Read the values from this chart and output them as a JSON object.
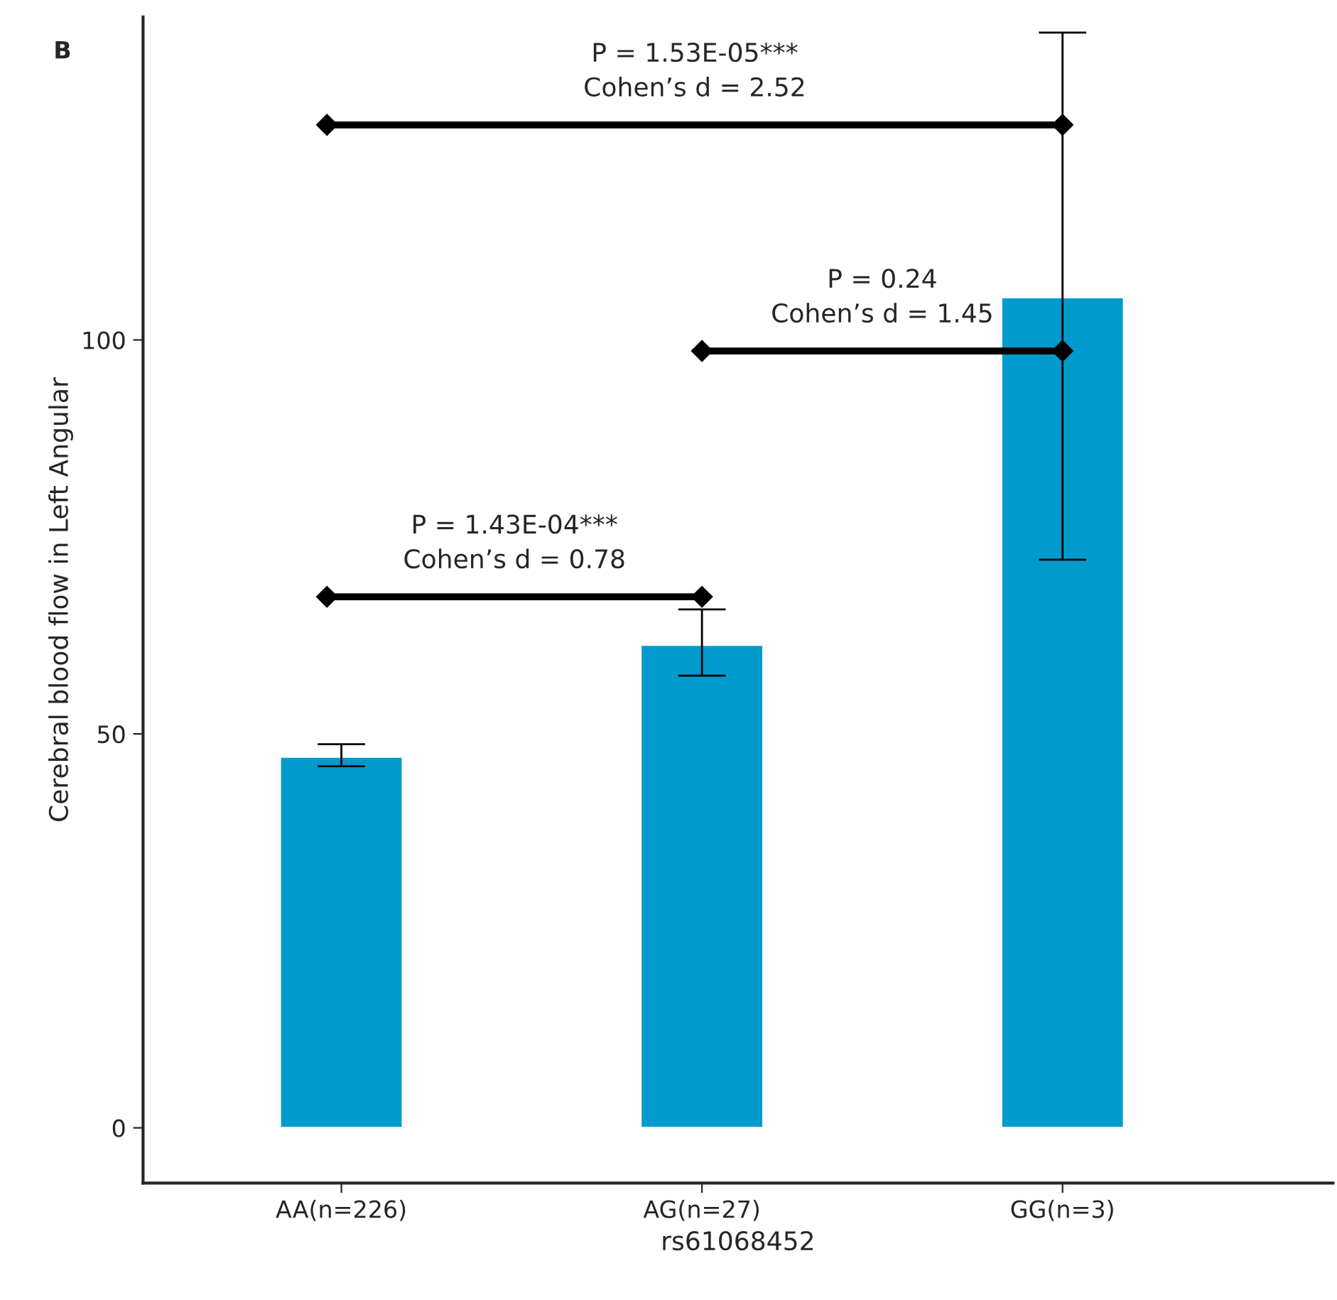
{
  "chart_data": {
    "type": "bar",
    "xlabel": "rs61068452",
    "ylabel": "Cerebral blood flow in Left Angular",
    "categories": [
      "AA(n=226)",
      "AG(n=27)",
      "GG(n=3)"
    ],
    "values": [
      47.1,
      61.3,
      105.4
    ],
    "color": "#009acd",
    "errors": [
      [
        45.9,
        48.7
      ],
      [
        57.4,
        65.8
      ],
      [
        72.1,
        139.0
      ]
    ],
    "ylim": [
      -7,
      141
    ],
    "yticks": [
      0,
      50,
      100
    ],
    "grid": false,
    "legend": false,
    "annotations": [
      "B",
      "P = 1.43E-04***\nCohen’s d = 0.78",
      "P = 0.24\nCohen’s d = 1.45",
      "P = 1.53E-05***\nCohen’s d = 2.52"
    ]
  }
}
